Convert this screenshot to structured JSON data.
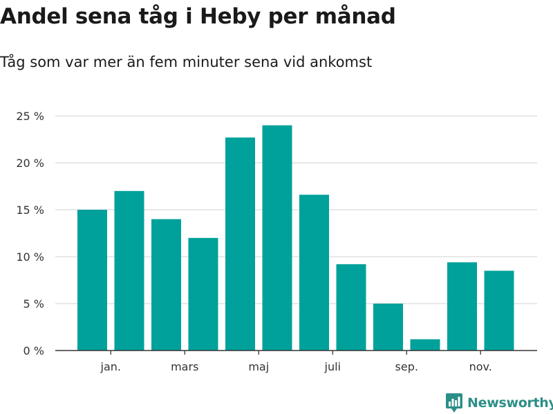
{
  "header": {
    "title": "Andel sena tåg i Heby per månad",
    "subtitle": "Tåg som var mer än fem minuter sena vid ankomst"
  },
  "brand": {
    "name": "Newsworthy",
    "color": "#2c8f87",
    "icon": "bar-chart-logo-icon"
  },
  "colors": {
    "bar": "#00a19a",
    "grid": "#d9d9d9",
    "axis": "#333333"
  },
  "chart_data": {
    "type": "bar",
    "title": "Andel sena tåg i Heby per månad",
    "subtitle": "Tåg som var mer än fem minuter sena vid ankomst",
    "xlabel": "",
    "ylabel": "",
    "values": [
      15.0,
      17.0,
      14.0,
      12.0,
      22.7,
      24.0,
      16.6,
      9.2,
      5.0,
      1.2,
      9.4,
      8.5
    ],
    "x_tick_labels": [
      {
        "bar_index": 1,
        "label": "jan."
      },
      {
        "bar_index": 3,
        "label": "mars"
      },
      {
        "bar_index": 5,
        "label": "maj"
      },
      {
        "bar_index": 7,
        "label": "juli"
      },
      {
        "bar_index": 9,
        "label": "sep."
      },
      {
        "bar_index": 11,
        "label": "nov."
      }
    ],
    "y_ticks": [
      0,
      5,
      10,
      15,
      20,
      25
    ],
    "y_tick_labels": [
      "0 %",
      "5 %",
      "10 %",
      "15 %",
      "20 %",
      "25 %"
    ],
    "ylim": [
      0,
      25
    ],
    "grid": true,
    "legend": "none"
  }
}
